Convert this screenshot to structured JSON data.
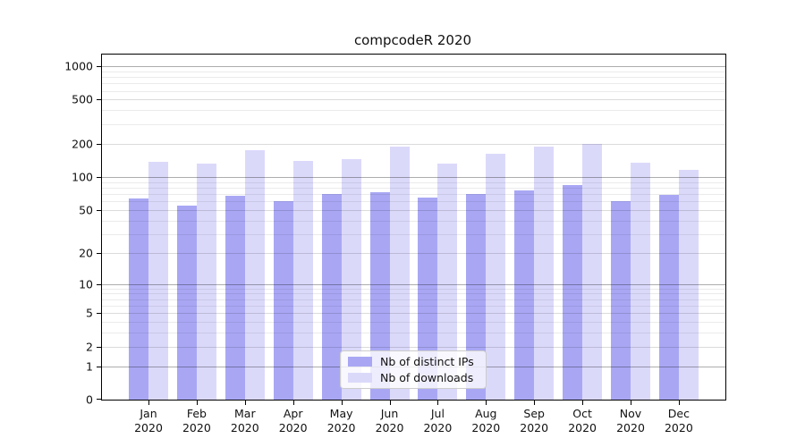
{
  "title": "compcodeR 2020",
  "colors": {
    "bar_ips": "#a9a7f4",
    "bar_downloads": "#dbd9fa",
    "grid_power10": "rgba(0,0,0,0.32)",
    "grid_labeled": "rgba(0,0,0,0.14)",
    "grid_minor": "rgba(0,0,0,0.08)",
    "spine": "#000000",
    "text": "#111111",
    "legend_border": "#cccccc"
  },
  "chart_data": {
    "type": "bar",
    "title": "compcodeR 2020",
    "categories": [
      "Jan",
      "Feb",
      "Mar",
      "Apr",
      "May",
      "Jun",
      "Jul",
      "Aug",
      "Sep",
      "Oct",
      "Nov",
      "Dec"
    ],
    "year_label": "2020",
    "series": [
      {
        "name": "Nb of distinct IPs",
        "color_key": "bar_ips",
        "values": [
          64,
          55,
          67,
          60,
          70,
          72,
          65,
          70,
          76,
          84,
          60,
          68
        ]
      },
      {
        "name": "Nb of downloads",
        "color_key": "bar_downloads",
        "values": [
          136,
          131,
          176,
          139,
          146,
          187,
          133,
          163,
          189,
          198,
          135,
          115
        ]
      }
    ],
    "y_scale": "log1p",
    "ylim": [
      0,
      1000
    ],
    "y_ticks": [
      0,
      1,
      2,
      5,
      10,
      20,
      50,
      100,
      200,
      500,
      1000
    ],
    "y_minor_ticks": [
      3,
      4,
      6,
      7,
      8,
      9,
      30,
      40,
      60,
      70,
      80,
      90,
      300,
      400,
      600,
      700,
      800,
      900
    ],
    "xlabel": "",
    "ylabel": "",
    "grid": "horizontal",
    "legend_position": "lower-center"
  }
}
